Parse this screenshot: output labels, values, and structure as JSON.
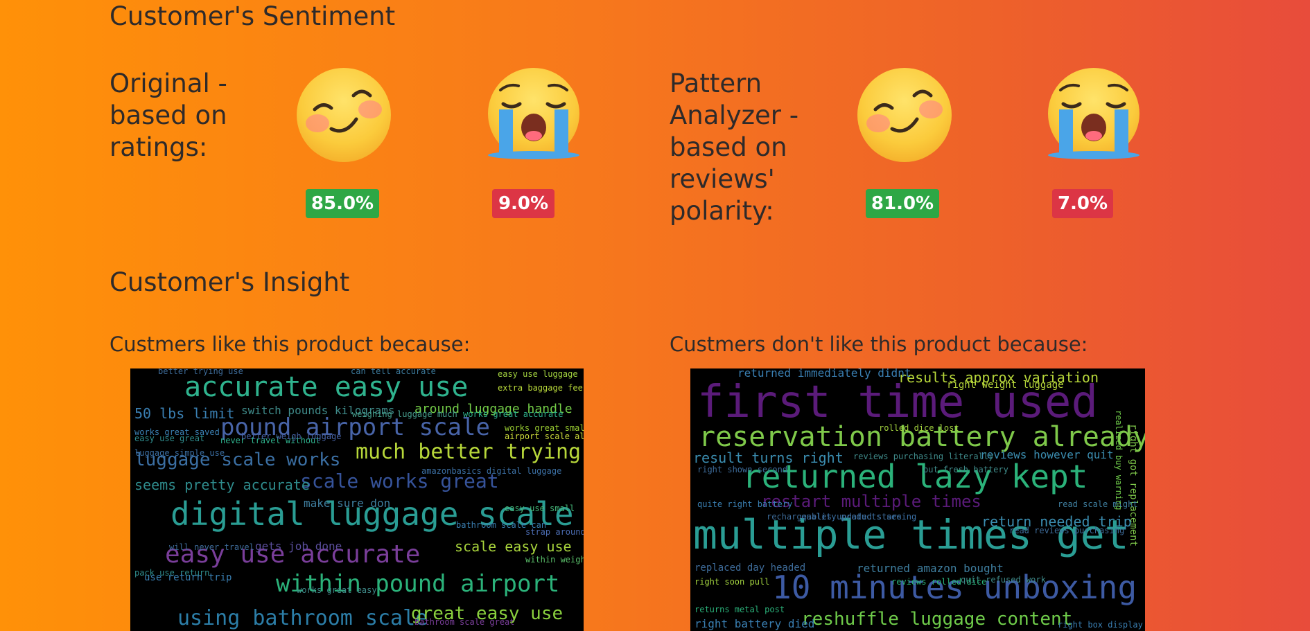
{
  "sentiment": {
    "title": "Customer's Sentiment",
    "original_label": "Original - based on ratings:",
    "original_label_lines": [
      "Original -",
      "based on",
      "ratings:"
    ],
    "original_positive": "85.0%",
    "original_negative": "9.0%",
    "pattern_label_lines": [
      "Pattern",
      "Analyzer -",
      "based on",
      "reviews'",
      "polarity:"
    ],
    "pattern_positive": "81.0%",
    "pattern_negative": "7.0%",
    "positive_icon": "smiling-face-icon",
    "negative_icon": "crying-face-icon",
    "colors": {
      "positive": "#2ea745",
      "negative": "#dc3545"
    }
  },
  "insight": {
    "title": "Customer's Insight",
    "like_label": "Custmers like this product because:",
    "dislike_label": "Custmers don't like this product because:",
    "like_words": [
      "accurate easy use",
      "pound airport scale",
      "much better trying",
      "luggage scale works",
      "scale works great",
      "seems pretty accurate",
      "digital luggage scale",
      "easy use accurate",
      "within pound airport",
      "using bathroom scale",
      "great easy use",
      "50 lbs limit",
      "switch pounds kilograms",
      "around luggage handle",
      "scale easy use",
      "gets job done",
      "make sure don",
      "better trying use",
      "can tell accurate",
      "easy use luggage",
      "extra baggage fees",
      "works great accurate",
      "works great small",
      "airport scale also",
      "amazonbasics digital luggage",
      "easy use small",
      "bathroom scale can",
      "strap around handle",
      "pack use return",
      "within weight limit",
      "use return trip",
      "will never travel",
      "works great saved",
      "weighing luggage much",
      "easy use great",
      "never travel without",
      "luggage simple use",
      "better weigh luggage",
      "works great easy",
      "bathroom scale great"
    ],
    "dislike_words": [
      "first time used",
      "reservation battery already",
      "returned lazy kept",
      "multiple times get",
      "10 minutes unboxing",
      "reshuffle luggage content",
      "restart multiple times",
      "return needed trip",
      "result turns right",
      "results approx variation",
      "returned immediately didnt",
      "returned amazon bought",
      "replaced day headed",
      "right battery died",
      "returns metal post",
      "right soon pull",
      "reviews however quit",
      "reviews purchasing literally",
      "rolled dice lost",
      "right weight luggage",
      "right shown second",
      "read reviews purchasing",
      "quit refused work",
      "reviews rolled dice",
      "right box display",
      "right got replacement",
      "put fresh battery",
      "quite right battery",
      "quality products seeing",
      "rechargeables updated stars",
      "read scale might",
      "realized buy warning"
    ]
  }
}
